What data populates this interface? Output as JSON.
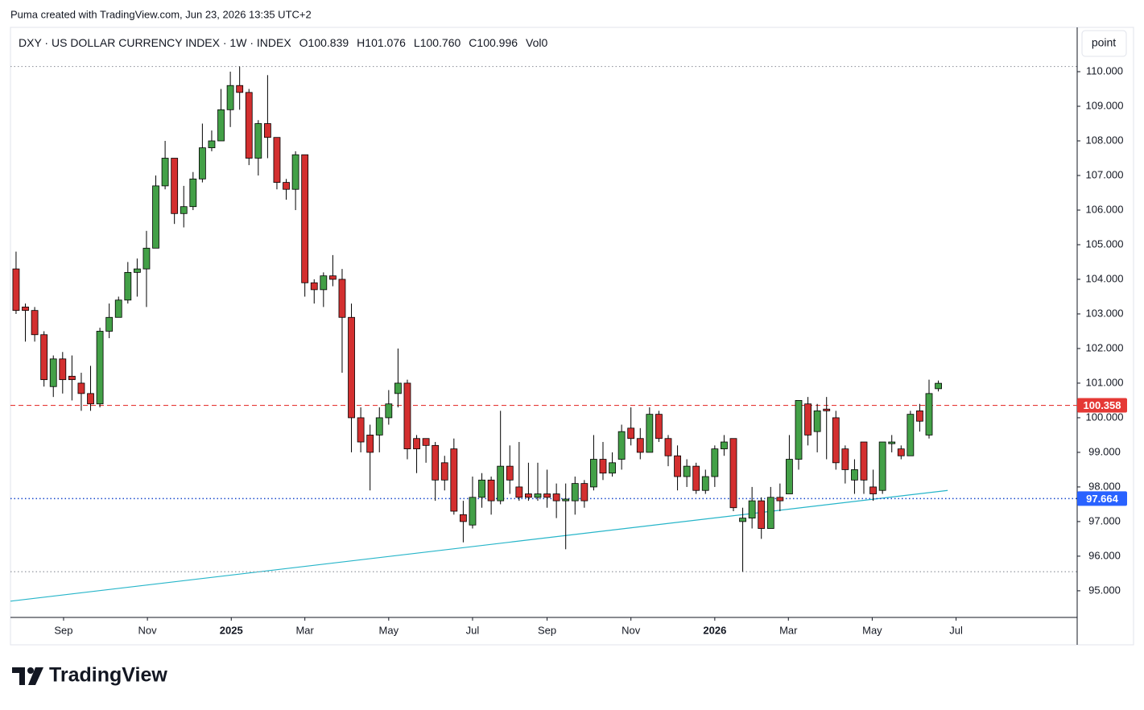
{
  "attribution": "Puma created with TradingView.com, Jun 23, 2026 13:35 UTC+2",
  "button": "point",
  "brand": "TradingView",
  "header": {
    "symbol": "DXY · US DOLLAR CURRENCY INDEX · 1W · INDEX",
    "fields": [
      {
        "key": "O",
        "value": "100.839"
      },
      {
        "key": "H",
        "value": "101.076"
      },
      {
        "key": "L",
        "value": "100.760"
      },
      {
        "key": "C",
        "value": "100.996"
      },
      {
        "key": "Vol",
        "value": "0"
      }
    ]
  },
  "chart_data": {
    "type": "candlestick",
    "open": [
      104.3,
      103.2,
      103.1,
      102.4,
      100.9,
      101.7,
      101.2,
      101.0,
      100.7,
      100.4,
      102.5,
      102.9,
      103.4,
      104.2,
      104.3,
      104.9,
      106.7,
      107.5,
      105.9,
      106.1,
      106.9,
      107.8,
      108.0,
      108.9,
      109.6,
      109.4,
      107.5,
      108.5,
      108.1,
      106.8,
      106.6,
      107.6,
      103.9,
      103.7,
      104.1,
      104.0,
      102.9,
      100.0,
      99.5,
      99.5,
      100.0,
      100.7,
      101.0,
      99.4,
      99.4,
      99.2,
      98.7,
      99.1,
      97.2,
      96.9,
      97.7,
      98.2,
      97.6,
      98.6,
      98.0,
      97.8,
      97.7,
      97.8,
      97.8,
      97.6,
      97.6,
      98.1,
      98.0,
      98.8,
      98.4,
      98.8,
      99.7,
      99.4,
      99.0,
      100.1,
      99.4,
      98.9,
      98.3,
      98.6,
      97.9,
      98.3,
      99.1,
      99.4,
      97.0,
      97.1,
      97.6,
      96.8,
      97.7,
      97.8,
      98.8,
      100.4,
      99.6,
      100.25,
      100.0,
      99.1,
      98.2,
      99.3,
      98.0,
      97.9,
      99.25,
      99.1,
      98.9,
      100.2,
      99.5,
      100.839
    ],
    "high": [
      104.8,
      103.3,
      103.2,
      102.5,
      101.8,
      101.9,
      101.8,
      101.3,
      101.5,
      102.6,
      103.3,
      103.5,
      104.5,
      104.6,
      105.4,
      107.0,
      108.0,
      107.5,
      106.7,
      107.1,
      108.5,
      108.3,
      109.5,
      110.0,
      110.15,
      109.5,
      108.6,
      109.9,
      108.1,
      106.9,
      107.7,
      107.6,
      104.0,
      104.2,
      104.7,
      104.3,
      103.3,
      100.3,
      99.8,
      100.3,
      100.8,
      102.0,
      101.1,
      99.5,
      99.4,
      99.3,
      98.9,
      99.4,
      97.6,
      98.3,
      98.4,
      98.3,
      100.2,
      99.2,
      99.3,
      98.7,
      98.7,
      98.5,
      98.1,
      98.1,
      98.3,
      98.2,
      99.5,
      99.3,
      99.0,
      99.8,
      100.3,
      99.7,
      100.3,
      100.2,
      99.5,
      99.2,
      98.8,
      98.7,
      98.5,
      99.2,
      99.5,
      99.4,
      97.4,
      98.0,
      97.7,
      98.0,
      98.1,
      99.5,
      100.5,
      100.6,
      100.4,
      100.6,
      100.2,
      99.2,
      98.8,
      99.3,
      98.5,
      99.3,
      99.5,
      99.2,
      100.2,
      100.4,
      101.1,
      101.076
    ],
    "low": [
      103.0,
      102.2,
      102.2,
      100.9,
      100.6,
      100.7,
      100.5,
      100.2,
      100.2,
      100.3,
      102.3,
      102.9,
      103.3,
      103.5,
      103.2,
      104.9,
      106.6,
      105.6,
      105.5,
      106.0,
      106.8,
      107.7,
      108.0,
      108.4,
      108.9,
      107.3,
      107.0,
      107.5,
      106.6,
      106.3,
      106.0,
      103.5,
      103.3,
      103.2,
      103.8,
      101.3,
      99.0,
      99.0,
      97.9,
      99.0,
      99.8,
      100.3,
      98.8,
      98.4,
      98.7,
      97.6,
      97.9,
      97.2,
      96.4,
      96.8,
      97.4,
      97.2,
      97.5,
      97.8,
      97.6,
      97.6,
      97.6,
      97.4,
      97.1,
      96.2,
      97.2,
      97.4,
      97.9,
      98.2,
      98.3,
      98.5,
      99.2,
      98.8,
      99.0,
      99.3,
      98.6,
      97.9,
      98.0,
      97.8,
      97.8,
      98.0,
      98.9,
      97.3,
      95.55,
      96.8,
      96.5,
      96.8,
      97.3,
      97.8,
      98.5,
      99.2,
      99.0,
      98.8,
      98.5,
      98.1,
      97.8,
      97.8,
      97.6,
      97.8,
      99.0,
      98.8,
      98.9,
      99.6,
      99.4,
      100.76
    ],
    "close": [
      103.1,
      103.1,
      102.4,
      101.1,
      101.7,
      101.1,
      101.1,
      100.7,
      100.4,
      102.5,
      102.9,
      103.4,
      104.2,
      104.3,
      104.9,
      106.7,
      107.5,
      105.9,
      106.1,
      106.9,
      107.8,
      108.0,
      108.9,
      109.6,
      109.4,
      107.5,
      108.5,
      108.1,
      106.8,
      106.6,
      107.6,
      103.9,
      103.7,
      104.1,
      104.0,
      102.9,
      100.0,
      99.3,
      99.0,
      100.0,
      100.4,
      101.0,
      99.1,
      99.1,
      99.2,
      98.2,
      98.2,
      97.3,
      97.0,
      97.7,
      98.2,
      97.6,
      98.6,
      98.2,
      97.7,
      97.7,
      97.8,
      97.7,
      97.6,
      97.65,
      98.1,
      97.6,
      98.8,
      98.4,
      98.7,
      99.6,
      99.4,
      99.0,
      100.1,
      99.4,
      98.9,
      98.3,
      98.6,
      97.9,
      98.3,
      99.1,
      99.3,
      97.4,
      97.1,
      97.6,
      96.8,
      97.7,
      97.6,
      98.8,
      100.5,
      99.5,
      100.2,
      100.2,
      98.7,
      98.5,
      98.5,
      98.2,
      97.8,
      99.3,
      99.3,
      98.9,
      100.1,
      99.9,
      100.7,
      100.996
    ],
    "up_color": "#43a047",
    "down_color": "#d32f2f",
    "border_color": "#000000",
    "ylim": [
      94.23,
      111.28
    ],
    "yticks": [
      {
        "value": 95,
        "label": "95.000"
      },
      {
        "value": 96,
        "label": "96.000"
      },
      {
        "value": 97,
        "label": "97.000"
      },
      {
        "value": 98,
        "label": "98.000"
      },
      {
        "value": 99,
        "label": "99.000"
      },
      {
        "value": 100,
        "label": "100.000"
      },
      {
        "value": 101,
        "label": "101.000"
      },
      {
        "value": 102,
        "label": "102.000"
      },
      {
        "value": 103,
        "label": "103.000"
      },
      {
        "value": 104,
        "label": "104.000"
      },
      {
        "value": 105,
        "label": "105.000"
      },
      {
        "value": 106,
        "label": "106.000"
      },
      {
        "value": 107,
        "label": "107.000"
      },
      {
        "value": 108,
        "label": "108.000"
      },
      {
        "value": 109,
        "label": "109.000"
      },
      {
        "value": 110,
        "label": "110.000"
      }
    ],
    "xlim": [
      -0.6,
      113.9
    ],
    "xticks": [
      {
        "value": 5.1,
        "label": "Sep"
      },
      {
        "value": 14.1,
        "label": "Nov"
      },
      {
        "value": 23.1,
        "label": "2025",
        "bold": true
      },
      {
        "value": 31.0,
        "label": "Mar"
      },
      {
        "value": 40.0,
        "label": "May"
      },
      {
        "value": 49.0,
        "label": "Jul"
      },
      {
        "value": 57.0,
        "label": "Sep"
      },
      {
        "value": 66.0,
        "label": "Nov"
      },
      {
        "value": 75.0,
        "label": "2026",
        "bold": true
      },
      {
        "value": 82.9,
        "label": "Mar"
      },
      {
        "value": 91.9,
        "label": "May"
      },
      {
        "value": 100.9,
        "label": "Jul"
      }
    ],
    "hlines": [
      {
        "value": 100.358,
        "color": "#e53935",
        "style": "dashed",
        "label": true
      },
      {
        "value": 97.664,
        "color": "#1848cc",
        "style": "dotted",
        "label": true,
        "label_color": "#2962ff"
      },
      {
        "value": 110.15,
        "color": "#9598a1",
        "style": "dotted",
        "label": false
      },
      {
        "value": 95.55,
        "color": "#9598a1",
        "style": "dotted",
        "label": false
      }
    ],
    "trendline": {
      "x": [
        -0.6,
        100.0
      ],
      "y": [
        94.7,
        97.9
      ],
      "color": "#26b5c9"
    }
  }
}
